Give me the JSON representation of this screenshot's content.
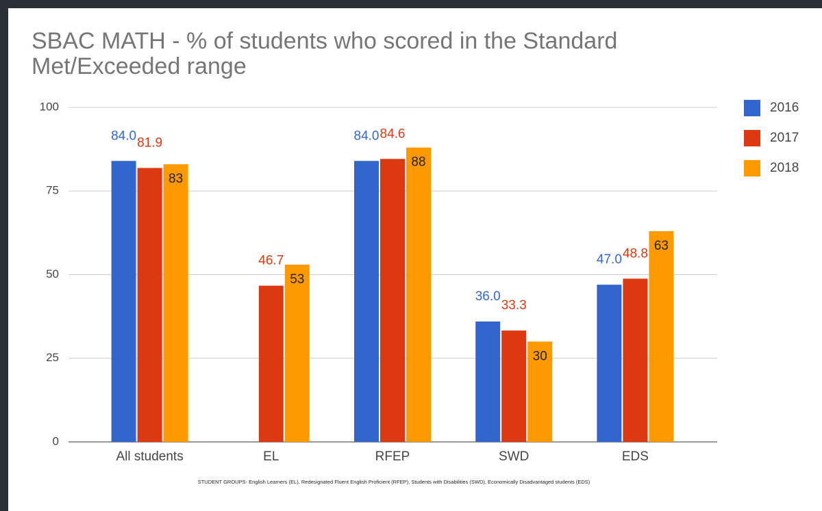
{
  "chart_data": {
    "type": "bar",
    "title": "SBAC MATH - % of students who scored in the Standard Met/Exceeded range",
    "footnote": "STUDENT GROUPS- English Learners (EL), Redesignated Fluent English Proficient (RFEP), Students with Disabilities (SWD), Economically Disadvantaged students (EDS)",
    "categories": [
      "All students",
      "EL",
      "RFEP",
      "SWD",
      "EDS"
    ],
    "series": [
      {
        "name": "2016",
        "color": "#3366cc",
        "values": [
          84.0,
          null,
          84.0,
          36.0,
          47.0
        ],
        "value_labels": [
          "84.0",
          null,
          "84.0",
          "36.0",
          "47.0"
        ]
      },
      {
        "name": "2017",
        "color": "#dc3912",
        "values": [
          81.9,
          46.7,
          84.6,
          33.3,
          48.8
        ]
      },
      {
        "name": "2018",
        "color": "#ff9900",
        "values": [
          83,
          53,
          88,
          30,
          63
        ]
      }
    ],
    "ylim": [
      0,
      100
    ],
    "yticks": [
      0,
      25,
      50,
      75,
      100
    ],
    "grid": true,
    "legend": "right"
  }
}
